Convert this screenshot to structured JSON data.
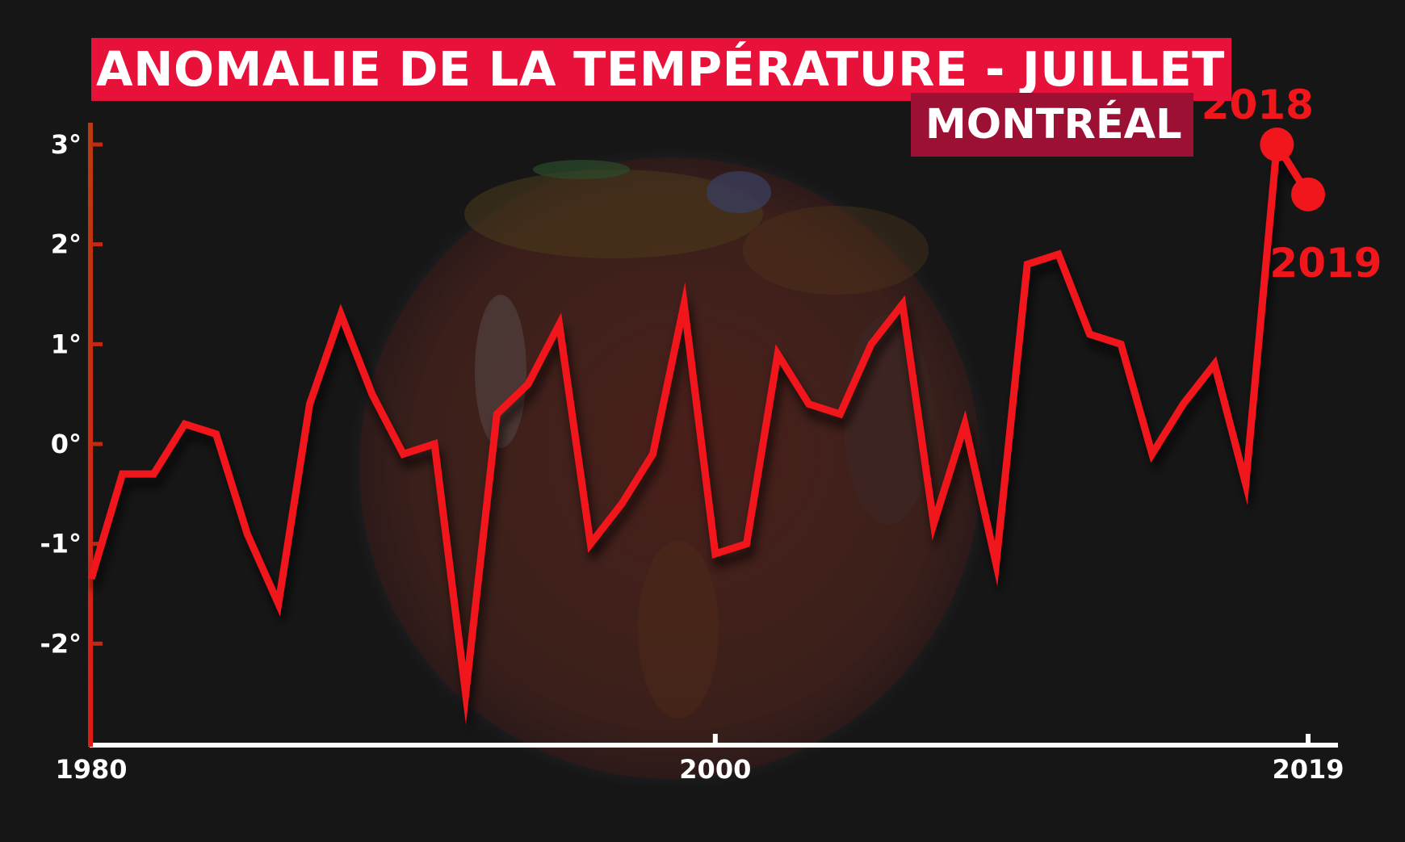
{
  "chart_data": {
    "type": "line",
    "title": "ANOMALIE DE LA TEMPÉRATURE - JUILLET",
    "subtitle": "MONTRÉAL",
    "xlabel": "",
    "ylabel": "",
    "xlim": [
      1980,
      2019
    ],
    "ylim": [
      -3,
      3.2
    ],
    "x_ticks": [
      {
        "value": 1980,
        "label": "1980"
      },
      {
        "value": 2000,
        "label": "2000"
      },
      {
        "value": 2019,
        "label": "2019"
      }
    ],
    "y_ticks": [
      {
        "value": 3,
        "label": "3°"
      },
      {
        "value": 2,
        "label": "2°"
      },
      {
        "value": 1,
        "label": "1°"
      },
      {
        "value": 0,
        "label": "0°"
      },
      {
        "value": -1,
        "label": "-1°"
      },
      {
        "value": -2,
        "label": "-2°"
      }
    ],
    "grid": false,
    "legend": "none",
    "colors": {
      "line": "#f0161c",
      "title_bg": "#e8113a",
      "subtitle_bg": "#9c1034",
      "axis_x": "#ffffff",
      "axis_y": "#e11a16"
    },
    "series": [
      {
        "x": [
          1980,
          1981,
          1982,
          1983,
          1984,
          1985,
          1986,
          1987,
          1988,
          1989,
          1990,
          1991,
          1992,
          1993,
          1994,
          1995,
          1996,
          1997,
          1998,
          1999,
          2000,
          2001,
          2002,
          2003,
          2004,
          2005,
          2006,
          2007,
          2008,
          2009,
          2010,
          2011,
          2012,
          2013,
          2014,
          2015,
          2016,
          2017,
          2018,
          2019
        ],
        "values": [
          -1.35,
          -0.3,
          -0.3,
          0.2,
          0.1,
          -0.9,
          -1.6,
          0.4,
          1.3,
          0.5,
          -0.1,
          0.0,
          -2.5,
          0.3,
          0.6,
          1.2,
          -1.0,
          -0.6,
          -0.1,
          1.4,
          -1.1,
          -1.0,
          0.9,
          0.4,
          0.3,
          1.0,
          1.4,
          -0.8,
          0.2,
          -1.2,
          1.8,
          1.9,
          1.1,
          1.0,
          -0.1,
          0.4,
          0.8,
          -0.4,
          3.0,
          2.5
        ]
      }
    ],
    "annotations": [
      {
        "x": 2018,
        "y": 3.0,
        "label": "2018"
      },
      {
        "x": 2019,
        "y": 2.5,
        "label": "2019"
      }
    ]
  }
}
